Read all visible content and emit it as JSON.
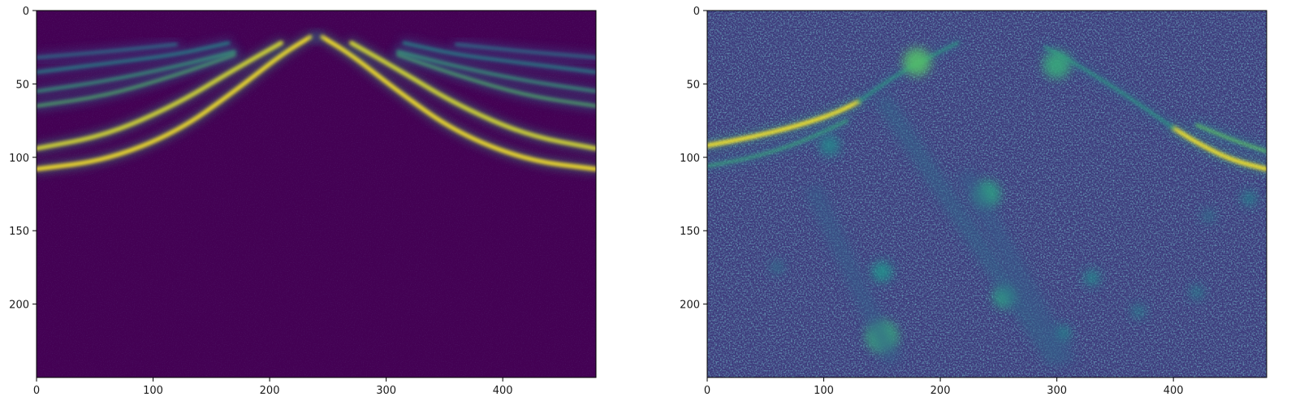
{
  "figure": {
    "background": "#ffffff",
    "colormap": "viridis",
    "colormap_stops": [
      "#440154",
      "#3b528b",
      "#21918c",
      "#5ec962",
      "#fde725"
    ]
  },
  "chart_data": [
    {
      "type": "heatmap",
      "name": "left-panel",
      "title": "",
      "xlabel": "",
      "ylabel": "",
      "xlim": [
        0,
        480
      ],
      "ylim": [
        250,
        0
      ],
      "xticks": [
        0,
        100,
        200,
        300,
        400
      ],
      "yticks": [
        0,
        50,
        100,
        150,
        200
      ],
      "grid": false,
      "background_value": 0.0,
      "features": [
        {
          "kind": "curve",
          "points": [
            [
              0,
              108
            ],
            [
              60,
              102
            ],
            [
              120,
              83
            ],
            [
              170,
              55
            ],
            [
              210,
              30
            ],
            [
              235,
              18
            ]
          ],
          "intensity": 1.0
        },
        {
          "kind": "curve",
          "points": [
            [
              0,
              94
            ],
            [
              60,
              85
            ],
            [
              120,
              64
            ],
            [
              170,
              40
            ],
            [
              210,
              22
            ]
          ],
          "intensity": 0.95
        },
        {
          "kind": "curve",
          "points": [
            [
              0,
              65
            ],
            [
              60,
              58
            ],
            [
              120,
              44
            ],
            [
              170,
              30
            ]
          ],
          "intensity": 0.7
        },
        {
          "kind": "curve",
          "points": [
            [
              0,
              55
            ],
            [
              60,
              48
            ],
            [
              120,
              38
            ],
            [
              170,
              28
            ]
          ],
          "intensity": 0.6
        },
        {
          "kind": "curve",
          "points": [
            [
              0,
              42
            ],
            [
              60,
              36
            ],
            [
              120,
              30
            ],
            [
              165,
              22
            ]
          ],
          "intensity": 0.5
        },
        {
          "kind": "curve",
          "points": [
            [
              0,
              32
            ],
            [
              60,
              28
            ],
            [
              120,
              23
            ]
          ],
          "intensity": 0.4
        },
        {
          "kind": "curve",
          "points": [
            [
              480,
              108
            ],
            [
              420,
              102
            ],
            [
              360,
              83
            ],
            [
              310,
              55
            ],
            [
              270,
              30
            ],
            [
              245,
              18
            ]
          ],
          "intensity": 1.0
        },
        {
          "kind": "curve",
          "points": [
            [
              480,
              94
            ],
            [
              420,
              85
            ],
            [
              360,
              64
            ],
            [
              310,
              40
            ],
            [
              270,
              22
            ]
          ],
          "intensity": 0.95
        },
        {
          "kind": "curve",
          "points": [
            [
              480,
              65
            ],
            [
              420,
              58
            ],
            [
              360,
              44
            ],
            [
              310,
              30
            ]
          ],
          "intensity": 0.7
        },
        {
          "kind": "curve",
          "points": [
            [
              480,
              55
            ],
            [
              420,
              48
            ],
            [
              360,
              38
            ],
            [
              310,
              28
            ]
          ],
          "intensity": 0.6
        },
        {
          "kind": "curve",
          "points": [
            [
              480,
              42
            ],
            [
              420,
              36
            ],
            [
              360,
              30
            ],
            [
              315,
              22
            ]
          ],
          "intensity": 0.5
        },
        {
          "kind": "curve",
          "points": [
            [
              480,
              32
            ],
            [
              420,
              28
            ],
            [
              360,
              23
            ]
          ],
          "intensity": 0.4
        },
        {
          "kind": "blob",
          "center": [
            240,
            18
          ],
          "radius": 4,
          "intensity": 0.35
        }
      ]
    },
    {
      "type": "heatmap",
      "name": "right-panel",
      "title": "",
      "xlabel": "",
      "ylabel": "",
      "xlim": [
        0,
        480
      ],
      "ylim": [
        250,
        0
      ],
      "xticks": [
        0,
        100,
        200,
        300,
        400
      ],
      "yticks": [
        0,
        50,
        100,
        150,
        200
      ],
      "grid": false,
      "background_value": 0.18,
      "features": [
        {
          "kind": "curve",
          "points": [
            [
              0,
              92
            ],
            [
              40,
              86
            ],
            [
              80,
              78
            ],
            [
              110,
              70
            ],
            [
              130,
              62
            ]
          ],
          "intensity": 1.0
        },
        {
          "kind": "curve",
          "points": [
            [
              0,
              106
            ],
            [
              40,
              100
            ],
            [
              80,
              90
            ],
            [
              120,
              75
            ]
          ],
          "intensity": 0.6
        },
        {
          "kind": "curve",
          "points": [
            [
              130,
              62
            ],
            [
              160,
              45
            ],
            [
              190,
              32
            ],
            [
              215,
              22
            ]
          ],
          "intensity": 0.55
        },
        {
          "kind": "curve",
          "points": [
            [
              480,
              108
            ],
            [
              450,
              102
            ],
            [
              420,
              90
            ],
            [
              400,
              80
            ]
          ],
          "intensity": 1.0
        },
        {
          "kind": "curve",
          "points": [
            [
              480,
              96
            ],
            [
              450,
              88
            ],
            [
              420,
              78
            ]
          ],
          "intensity": 0.75
        },
        {
          "kind": "curve",
          "points": [
            [
              400,
              80
            ],
            [
              360,
              58
            ],
            [
              320,
              38
            ],
            [
              290,
              25
            ]
          ],
          "intensity": 0.55
        },
        {
          "kind": "blob",
          "center": [
            180,
            35
          ],
          "radius": 12,
          "intensity": 0.7
        },
        {
          "kind": "blob",
          "center": [
            300,
            37
          ],
          "radius": 12,
          "intensity": 0.6
        },
        {
          "kind": "blob",
          "center": [
            240,
            125
          ],
          "radius": 12,
          "intensity": 0.55
        },
        {
          "kind": "blob",
          "center": [
            255,
            195
          ],
          "radius": 10,
          "intensity": 0.55
        },
        {
          "kind": "blob",
          "center": [
            150,
            178
          ],
          "radius": 9,
          "intensity": 0.5
        },
        {
          "kind": "blob",
          "center": [
            150,
            222
          ],
          "radius": 14,
          "intensity": 0.6
        },
        {
          "kind": "blob",
          "center": [
            105,
            92
          ],
          "radius": 9,
          "intensity": 0.45
        },
        {
          "kind": "blob",
          "center": [
            305,
            220
          ],
          "radius": 7,
          "intensity": 0.45
        },
        {
          "kind": "blob",
          "center": [
            330,
            182
          ],
          "radius": 7,
          "intensity": 0.45
        },
        {
          "kind": "blob",
          "center": [
            370,
            205
          ],
          "radius": 6,
          "intensity": 0.4
        },
        {
          "kind": "blob",
          "center": [
            420,
            192
          ],
          "radius": 6,
          "intensity": 0.4
        },
        {
          "kind": "blob",
          "center": [
            465,
            128
          ],
          "radius": 7,
          "intensity": 0.4
        },
        {
          "kind": "blob",
          "center": [
            60,
            175
          ],
          "radius": 6,
          "intensity": 0.35
        },
        {
          "kind": "blob",
          "center": [
            430,
            140
          ],
          "radius": 6,
          "intensity": 0.35
        },
        {
          "kind": "diagonal-band",
          "from": [
            150,
            60
          ],
          "to": [
            300,
            240
          ],
          "intensity": 0.33
        },
        {
          "kind": "diagonal-band",
          "from": [
            90,
            120
          ],
          "to": [
            160,
            240
          ],
          "intensity": 0.3
        },
        {
          "kind": "diagonal-band",
          "from": [
            220,
            110
          ],
          "to": [
            310,
            240
          ],
          "intensity": 0.3
        }
      ]
    }
  ]
}
